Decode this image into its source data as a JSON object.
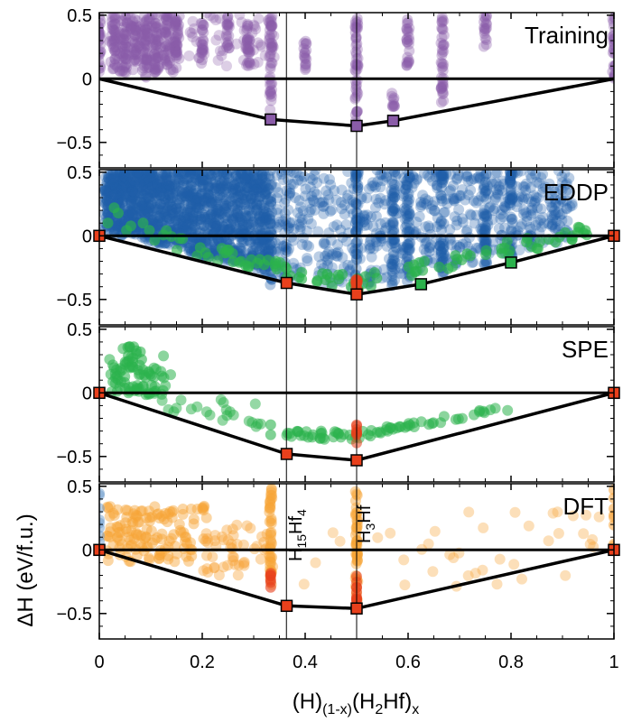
{
  "figure": {
    "x_axis": {
      "label_parts": [
        "(H)",
        "(1-x)",
        "(H",
        "2",
        "Hf)",
        "x"
      ],
      "range": [
        0,
        1
      ],
      "ticks": [
        0,
        0.2,
        0.4,
        0.6,
        0.8,
        1
      ],
      "tick_labels": [
        "0",
        "0.2",
        "0.4",
        "0.6",
        "0.8",
        "1"
      ]
    },
    "y_axis": {
      "label": "ΔH (eV/f.u.)",
      "ticks": [
        0.5,
        0,
        -0.5
      ],
      "tick_labels": [
        "0.5",
        "0",
        "−0.5"
      ]
    },
    "phase_markers": [
      {
        "x": 0.3636,
        "label_parts": [
          "H",
          "15",
          "Hf",
          "4"
        ]
      },
      {
        "x": 0.5,
        "label_parts": [
          "H",
          "3",
          "Hf"
        ]
      }
    ],
    "colors": {
      "training": "#8a5ca8",
      "eddp": "#1f5ea8",
      "spe": "#2bb24c",
      "dft": "#f7a336",
      "hull_marker": "#e8401c",
      "axis": "#000000"
    }
  },
  "chart_data": [
    {
      "type": "scatter",
      "title": "Training",
      "ylim": [
        -0.7,
        0.52
      ],
      "point_color": "#8a5ca8",
      "hull_x": [
        0,
        0.333,
        0.5,
        0.571,
        1
      ],
      "hull_y": [
        0,
        -0.32,
        -0.37,
        -0.33,
        0
      ],
      "hull_markers": [
        {
          "x": 0.333,
          "y": -0.32,
          "color": "#8a5ca8"
        },
        {
          "x": 0.5,
          "y": -0.37,
          "color": "#8a5ca8"
        },
        {
          "x": 0.571,
          "y": -0.33,
          "color": "#8a5ca8"
        }
      ],
      "columns": [
        {
          "x": 0.0,
          "ymin": 0.0,
          "ymax": 0.5
        },
        {
          "x": 0.03,
          "ymin": 0.15,
          "ymax": 0.5
        },
        {
          "x": 0.05,
          "ymin": 0.05,
          "ymax": 0.5
        },
        {
          "x": 0.07,
          "ymin": 0.1,
          "ymax": 0.5
        },
        {
          "x": 0.09,
          "ymin": 0.0,
          "ymax": 0.5
        },
        {
          "x": 0.11,
          "ymin": 0.05,
          "ymax": 0.5
        },
        {
          "x": 0.13,
          "ymin": 0.1,
          "ymax": 0.5
        },
        {
          "x": 0.15,
          "ymin": 0.2,
          "ymax": 0.5
        },
        {
          "x": 0.2,
          "ymin": 0.1,
          "ymax": 0.45
        },
        {
          "x": 0.25,
          "ymin": 0.2,
          "ymax": 0.5
        },
        {
          "x": 0.29,
          "ymin": 0.1,
          "ymax": 0.45
        },
        {
          "x": 0.333,
          "ymin": -0.25,
          "ymax": 0.5
        },
        {
          "x": 0.4,
          "ymin": 0.05,
          "ymax": 0.3
        },
        {
          "x": 0.5,
          "ymin": -0.35,
          "ymax": 0.5
        },
        {
          "x": 0.571,
          "ymin": -0.22,
          "ymax": -0.1
        },
        {
          "x": 0.6,
          "ymin": 0.1,
          "ymax": 0.5
        },
        {
          "x": 0.667,
          "ymin": -0.2,
          "ymax": 0.5
        },
        {
          "x": 0.75,
          "ymin": 0.25,
          "ymax": 0.5
        },
        {
          "x": 1.0,
          "ymin": 0.0,
          "ymax": 0.5
        }
      ]
    },
    {
      "type": "scatter",
      "title": "EDDP",
      "ylim": [
        -0.7,
        0.52
      ],
      "point_color": "#1f5ea8",
      "secondary_color": "#2bb24c",
      "hull_x": [
        0,
        0.364,
        0.5,
        0.625,
        0.8,
        1
      ],
      "hull_y": [
        0,
        -0.37,
        -0.46,
        -0.38,
        -0.21,
        0
      ],
      "hull_markers": [
        {
          "x": 0.0,
          "y": 0.0,
          "color": "#e8401c"
        },
        {
          "x": 0.364,
          "y": -0.37,
          "color": "#e8401c"
        },
        {
          "x": 0.5,
          "y": -0.46,
          "color": "#e8401c"
        },
        {
          "x": 0.625,
          "y": -0.38,
          "color": "#2bb24c"
        },
        {
          "x": 0.8,
          "y": -0.21,
          "color": "#2bb24c"
        },
        {
          "x": 1.0,
          "y": 0.0,
          "color": "#e8401c"
        }
      ]
    },
    {
      "type": "scatter",
      "title": "SPE",
      "ylim": [
        -0.7,
        0.52
      ],
      "point_color": "#2bb24c",
      "hull_x": [
        0,
        0.364,
        0.5,
        1
      ],
      "hull_y": [
        0,
        -0.48,
        -0.53,
        0
      ],
      "hull_markers": [
        {
          "x": 0.0,
          "y": 0.0,
          "color": "#e8401c"
        },
        {
          "x": 0.364,
          "y": -0.48,
          "color": "#e8401c"
        },
        {
          "x": 0.5,
          "y": -0.53,
          "color": "#e8401c"
        },
        {
          "x": 1.0,
          "y": 0.0,
          "color": "#e8401c"
        }
      ]
    },
    {
      "type": "scatter",
      "title": "DFT",
      "ylim": [
        -0.7,
        0.52
      ],
      "point_color": "#f7a336",
      "hull_x": [
        0,
        0.364,
        0.5,
        1
      ],
      "hull_y": [
        0,
        -0.44,
        -0.46,
        0
      ],
      "hull_markers": [
        {
          "x": 0.0,
          "y": 0.0,
          "color": "#e8401c"
        },
        {
          "x": 0.364,
          "y": -0.44,
          "color": "#e8401c"
        },
        {
          "x": 0.5,
          "y": -0.46,
          "color": "#e8401c"
        },
        {
          "x": 1.0,
          "y": 0.0,
          "color": "#e8401c"
        }
      ]
    }
  ]
}
